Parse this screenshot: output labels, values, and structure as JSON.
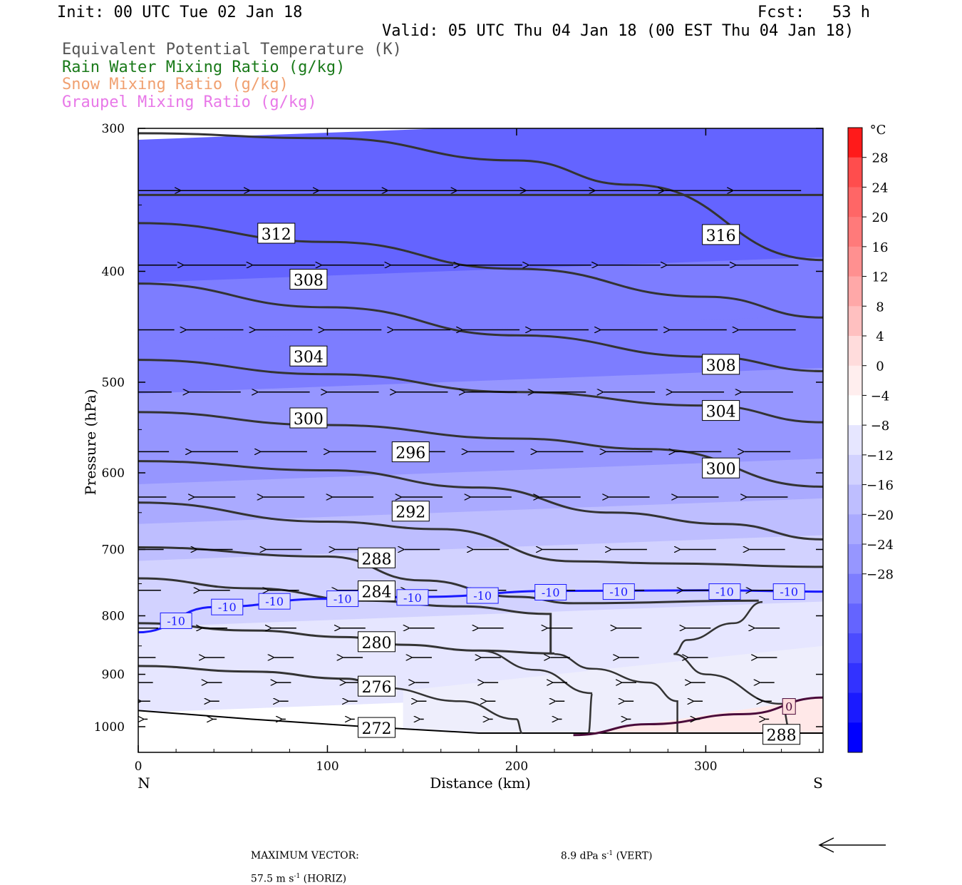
{
  "header": {
    "init": "Init: 00 UTC Tue 02 Jan 18",
    "fcst_label": "Fcst:",
    "fcst_value": "53 h",
    "valid": "Valid: 05 UTC Thu 04 Jan 18 (00 EST Thu 04 Jan 18)"
  },
  "legend": [
    {
      "label": "Equivalent Potential Temperature (K)",
      "color": "#555555"
    },
    {
      "label": "Rain Water Mixing Ratio (g/kg)",
      "color": "#1a7a1a"
    },
    {
      "label": "Snow Mixing Ratio (g/kg)",
      "color": "#f0a070"
    },
    {
      "label": "Graupel Mixing Ratio (g/kg)",
      "color": "#e878e8"
    }
  ],
  "axes": {
    "ylabel": "Pressure (hPa)",
    "xlabel": "Distance (km)",
    "x_left_label": "N",
    "x_right_label": "S",
    "colorbar_unit": "°C"
  },
  "footer": {
    "max_vector_label": "MAXIMUM VECTOR:",
    "horiz_value": "57.5 m s",
    "horiz_exp": "-1",
    "horiz_suffix": " (HORIZ)",
    "vert_value": "8.9 dPa s",
    "vert_exp": "-1",
    "vert_suffix": " (VERT)"
  },
  "chart_data": {
    "type": "cross-section",
    "x_range": [
      0,
      362
    ],
    "y_range_hpa": [
      300,
      1030
    ],
    "y_scale": "log-pressure",
    "x_ticks": [
      0,
      100,
      200,
      300
    ],
    "y_ticks": [
      300,
      400,
      500,
      600,
      700,
      800,
      900,
      1000
    ],
    "colorbar_ticks": [
      28,
      24,
      20,
      16,
      12,
      8,
      4,
      0,
      -4,
      -8,
      -12,
      -16,
      -20,
      -24,
      -28
    ],
    "colorbar_colors": [
      "#ff1a1a",
      "#ff4d4d",
      "#ff6666",
      "#ff7a7a",
      "#ff9090",
      "#ffa8a8",
      "#ffc0c0",
      "#ffdcdc",
      "#ffeeee",
      "#ffffff",
      "#e6e6ff",
      "#d2d2ff",
      "#bebeff",
      "#aaaaff",
      "#9696ff",
      "#7d7dff",
      "#6464ff",
      "#4b4bff",
      "#3232ff",
      "#1a1aff",
      "#0000ff"
    ],
    "temperature_fill": [
      {
        "p": 300,
        "t": -30
      },
      {
        "p": 400,
        "t": -29
      },
      {
        "p": 450,
        "t": -27
      },
      {
        "p": 500,
        "t": -25
      },
      {
        "p": 550,
        "t": -22
      },
      {
        "p": 600,
        "t": -19
      },
      {
        "p": 650,
        "t": -16
      },
      {
        "p": 700,
        "t": -13
      },
      {
        "p": 750,
        "t": -11
      },
      {
        "p": 800,
        "t": -9
      },
      {
        "p": 850,
        "t": -7
      },
      {
        "p": 900,
        "t": -6
      },
      {
        "p": 950,
        "t": -4
      },
      {
        "p": 1000,
        "t": -2
      }
    ],
    "theta_e_contours": [
      {
        "label": "312",
        "points": [
          [
            0,
            303
          ],
          [
            100,
            306
          ],
          [
            200,
            320
          ],
          [
            260,
            336
          ],
          [
            362,
            391
          ]
        ],
        "label_at": [
          73,
          371
        ]
      },
      {
        "label": "316",
        "points": [
          [
            0,
            343
          ],
          [
            362,
            343
          ]
        ],
        "label_at": [
          308,
          372
        ]
      },
      {
        "label": "308",
        "points": [
          [
            0,
            363
          ],
          [
            100,
            377
          ],
          [
            200,
            398
          ],
          [
            300,
            421
          ],
          [
            362,
            439
          ]
        ],
        "label_at": [
          90,
          407
        ]
      },
      {
        "label": "304",
        "points": [
          [
            0,
            410
          ],
          [
            100,
            430
          ],
          [
            200,
            455
          ],
          [
            300,
            475
          ],
          [
            362,
            489
          ]
        ],
        "label_at": [
          90,
          475
        ]
      },
      {
        "label": "300",
        "points": [
          [
            0,
            478
          ],
          [
            100,
            492
          ],
          [
            200,
            510
          ],
          [
            300,
            524
          ],
          [
            362,
            542
          ]
        ],
        "label_at": [
          90,
          538
        ]
      },
      {
        "label": "296",
        "points": [
          [
            0,
            531
          ],
          [
            100,
            545
          ],
          [
            200,
            560
          ],
          [
            270,
            572
          ],
          [
            362,
            617
          ]
        ],
        "label_at": [
          144,
          576
        ]
      },
      {
        "label": "292",
        "points": [
          [
            0,
            586
          ],
          [
            100,
            597
          ],
          [
            180,
            618
          ],
          [
            250,
            650
          ],
          [
            310,
            665
          ],
          [
            362,
            686
          ]
        ],
        "label_at": [
          144,
          649
        ]
      },
      {
        "label": "288",
        "points": [
          [
            0,
            637
          ],
          [
            100,
            662
          ],
          [
            160,
            672
          ],
          [
            230,
            717
          ],
          [
            280,
            720
          ],
          [
            362,
            725
          ]
        ],
        "label_at": [
          126,
          713
        ]
      },
      {
        "label": "284",
        "points": [
          [
            0,
            697
          ],
          [
            100,
            710
          ],
          [
            150,
            745
          ],
          [
            200,
            770
          ],
          [
            230,
            780
          ],
          [
            328,
            776
          ]
        ],
        "label_at": [
          126,
          762
        ]
      },
      {
        "label": "280",
        "points": [
          [
            0,
            742
          ],
          [
            60,
            757
          ],
          [
            120,
            776
          ],
          [
            170,
            785
          ],
          [
            218,
            797
          ],
          [
            218,
            864
          ]
        ],
        "label_at": [
          126,
          844
        ]
      },
      {
        "label": "276",
        "points": [
          [
            0,
            812
          ],
          [
            60,
            824
          ],
          [
            110,
            835
          ],
          [
            140,
            848
          ],
          [
            180,
            858
          ],
          [
            220,
            863
          ]
        ],
        "label_at": [
          126,
          923
        ]
      },
      {
        "label": "272",
        "points": [
          [
            0,
            885
          ],
          [
            60,
            895
          ],
          [
            110,
            908
          ],
          [
            130,
            925
          ]
        ],
        "label_at": [
          126,
          1003
        ]
      }
    ],
    "temperature_contours": [
      {
        "label": "-10",
        "color": "#1a1aff",
        "points": [
          [
            0,
            827
          ],
          [
            40,
            786
          ],
          [
            100,
            773
          ],
          [
            150,
            770
          ],
          [
            220,
            761
          ],
          [
            300,
            760
          ],
          [
            362,
            762
          ]
        ]
      },
      {
        "label": "0",
        "color": "#4a0a3a",
        "points": [
          [
            230,
            1017
          ],
          [
            270,
            995
          ],
          [
            320,
            975
          ],
          [
            362,
            943
          ]
        ]
      }
    ],
    "wind_rows_hpa": [
      340,
      395,
      450,
      510,
      575,
      630,
      700,
      760,
      820,
      870,
      915,
      950,
      985
    ],
    "max_horiz_vector_ms": 57.5,
    "max_vert_vector_dpas": 8.9
  }
}
